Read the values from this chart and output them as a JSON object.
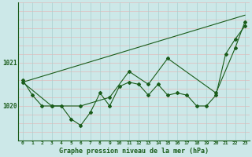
{
  "background_color": "#cce8e8",
  "grid_color": "#aacfcf",
  "line_color": "#1a5c1a",
  "title": "Graphe pression niveau de la mer (hPa)",
  "x_labels": [
    "0",
    "1",
    "2",
    "3",
    "4",
    "5",
    "6",
    "7",
    "8",
    "9",
    "10",
    "11",
    "12",
    "13",
    "14",
    "15",
    "16",
    "17",
    "18",
    "19",
    "20",
    "21",
    "22",
    "23"
  ],
  "ylim": [
    1019.2,
    1022.4
  ],
  "xlim": [
    -0.5,
    23.5
  ],
  "series1": [
    1020.6,
    1020.25,
    1020.0,
    1020.0,
    1020.0,
    1019.7,
    1019.55,
    1019.85,
    1020.3,
    1020.0,
    1020.45,
    1020.55,
    1020.5,
    1020.25,
    1020.5,
    1020.25,
    1020.3,
    1020.25,
    1020.0,
    1020.0,
    1020.25,
    1021.2,
    1021.55,
    1021.85
  ],
  "series2_x": [
    0,
    3,
    6,
    9,
    11,
    13,
    15,
    20,
    22,
    23
  ],
  "series2_y": [
    1020.55,
    1020.0,
    1020.0,
    1020.2,
    1020.8,
    1020.5,
    1021.1,
    1020.3,
    1021.35,
    1021.95
  ],
  "series3_x": [
    0,
    23
  ],
  "series3_y": [
    1020.55,
    1022.1
  ]
}
